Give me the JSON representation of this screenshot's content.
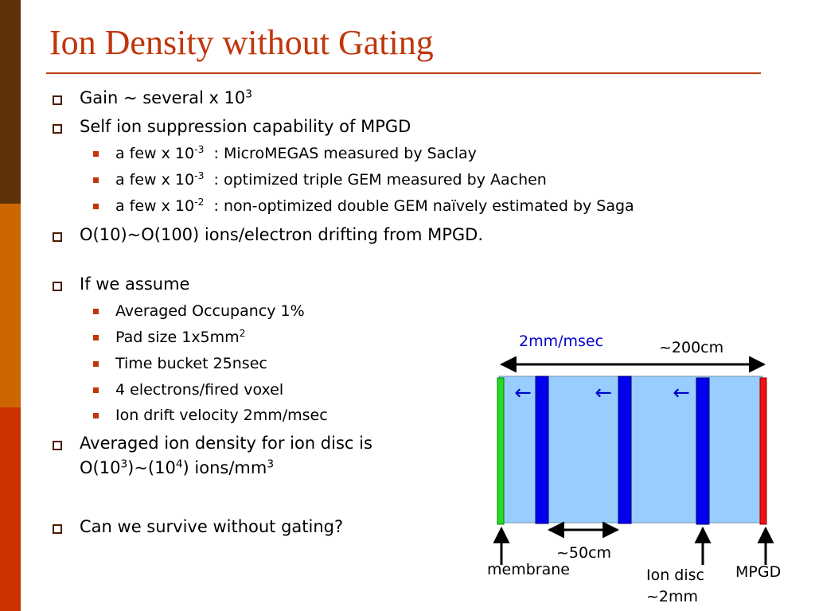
{
  "title": "Ion Density without Gating",
  "bullets": {
    "gain_text": "Gain ~ several x 10",
    "gain_exp": "3",
    "self_ion": "Self ion suppression capability of MPGD",
    "sub1_pre": "a few x 10",
    "sub1_exp": "-3",
    "sub1_post": "  : MicroMEGAS measured by Saclay",
    "sub2_pre": "a few x 10",
    "sub2_exp": "-3",
    "sub2_post": "  : optimized triple GEM measured by Aachen",
    "sub3_pre": "a few x 10",
    "sub3_exp": "-2",
    "sub3_post": "  : non-optimized double GEM naïvely estimated by Saga",
    "drifting": "O(10)~O(100) ions/electron drifting from MPGD.",
    "assume": "If we assume",
    "occupancy": "Averaged Occupancy 1%",
    "pad_pre": "Pad size 1x5mm",
    "pad_exp": "2",
    "time_bucket": "Time bucket 25nsec",
    "electrons": "4 electrons/fired voxel",
    "drift_velocity": "Ion drift velocity 2mm/msec",
    "density_l1": "Averaged ion density for ion disc is",
    "density_a": "O(10",
    "density_e1": "3",
    "density_b": ")~(10",
    "density_e2": "4",
    "density_c": ") ions/mm",
    "density_e3": "3",
    "survive": "Can we survive without gating?"
  },
  "diagram": {
    "speed": "2mm/msec",
    "length": "~200cm",
    "spacing": "~50cm",
    "membrane": "membrane",
    "ion_disc_1": "Ion disc",
    "ion_disc_2": "~2mm",
    "mpgd": "MPGD",
    "drift_arrow": "←",
    "colors": {
      "chamber": "#99ccff",
      "disc": "#0000ee",
      "membrane": "#22dd22",
      "mpgd": "#ee1111",
      "speed_text": "#0000cc"
    }
  }
}
